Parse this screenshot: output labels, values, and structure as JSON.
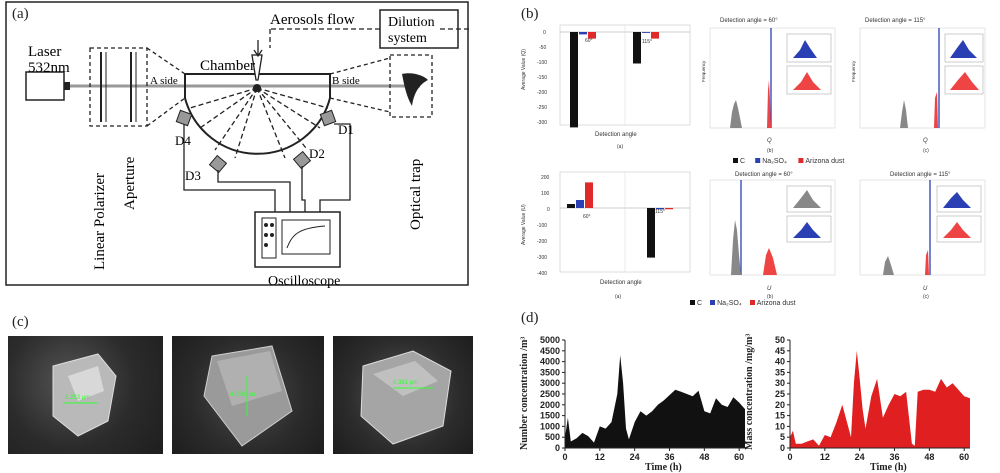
{
  "panel_labels": {
    "a": "(a)",
    "b": "(b)",
    "c": "(c)",
    "d": "(d)"
  },
  "apparatus": {
    "laser": "Laser",
    "wavelength": "532nm",
    "aerosols_flow": "Aerosols flow",
    "dilution": "Dilution system",
    "chamber": "Chamber",
    "a_side": "A side",
    "b_side": "B side",
    "linear_polarizer": "Linear Polarizer",
    "aperture": "Aperture",
    "optical_trap": "Optical trap",
    "oscilloscope": "Oscilloscope",
    "detectors": [
      "D1",
      "D2",
      "D3",
      "D4"
    ]
  },
  "panel_b": {
    "hist_title_60": "Detection angle = 60°",
    "hist_title_115": "Detection angle = 115°",
    "bar_xlabel": "Detection angle",
    "ylabel_q": "Average Value (Q)",
    "ylabel_u": "Average Value (U)",
    "freq_label": "Frequency",
    "xq": "Q",
    "xu": "U",
    "angle_60": "60°",
    "angle_115": "115°",
    "sub_a": "(a)",
    "sub_b": "(b)",
    "sub_c": "(c)",
    "legend": [
      {
        "name": "C",
        "color": "#111111"
      },
      {
        "name": "Na₂SO₄",
        "color": "#2b3fb5"
      },
      {
        "name": "Arizona dust",
        "color": "#e02a2a"
      }
    ],
    "q_bars": {
      "60": [
        -318,
        -8,
        -22
      ],
      "115": [
        -105,
        -3,
        -22
      ]
    },
    "u_bars": {
      "60": [
        25,
        50,
        160
      ],
      "115": [
        -310,
        -8,
        -8
      ]
    }
  },
  "panel_c": {
    "scale_labels": [
      "6.253 μm",
      "4.350 μm",
      "6.381 μm"
    ]
  },
  "chart_data": [
    {
      "type": "area",
      "ylabel": "Number concentration /m³",
      "xlabel": "Time (h)",
      "ylim": [
        0,
        5000
      ],
      "xticks": [
        0,
        12,
        24,
        36,
        48,
        60
      ],
      "yticks": [
        0,
        500,
        1000,
        1500,
        2000,
        2500,
        3000,
        3500,
        4000,
        4500,
        5000
      ],
      "color": "#111111",
      "x": [
        0,
        1,
        2,
        4,
        6,
        8,
        10,
        12,
        14,
        16,
        18,
        19,
        20,
        21,
        22,
        24,
        26,
        28,
        30,
        32,
        34,
        36,
        38,
        40,
        42,
        44,
        46,
        48,
        50,
        52,
        54,
        56,
        58,
        60,
        62
      ],
      "y": [
        500,
        1400,
        300,
        450,
        700,
        550,
        250,
        1000,
        900,
        1200,
        2500,
        4300,
        3000,
        900,
        400,
        1200,
        1700,
        1500,
        1700,
        2000,
        2200,
        2450,
        2700,
        2600,
        2500,
        2400,
        2650,
        1700,
        1600,
        2300,
        2000,
        1900,
        2350,
        2100,
        1800
      ]
    },
    {
      "type": "area",
      "ylabel": "Mass concentration /mg/m³",
      "xlabel": "Time (h)",
      "ylim": [
        0,
        50
      ],
      "xticks": [
        0,
        12,
        24,
        36,
        48,
        60
      ],
      "yticks": [
        0,
        5,
        10,
        15,
        20,
        25,
        30,
        35,
        40,
        45,
        50
      ],
      "color": "#e02020",
      "x": [
        0,
        1,
        2,
        4,
        6,
        8,
        10,
        12,
        14,
        16,
        18,
        20,
        21,
        22,
        23,
        24,
        25,
        26,
        28,
        30,
        32,
        34,
        36,
        38,
        40,
        42,
        43,
        44,
        46,
        48,
        50,
        52,
        54,
        56,
        58,
        60,
        62
      ],
      "y": [
        5,
        8,
        2,
        2,
        3,
        4,
        1,
        6,
        5,
        12,
        20,
        10,
        5,
        30,
        45,
        32,
        18,
        9,
        24,
        32,
        14,
        20,
        25,
        24,
        26,
        2,
        1,
        26,
        27,
        27,
        26,
        32,
        28,
        30,
        27,
        24,
        23
      ]
    }
  ]
}
